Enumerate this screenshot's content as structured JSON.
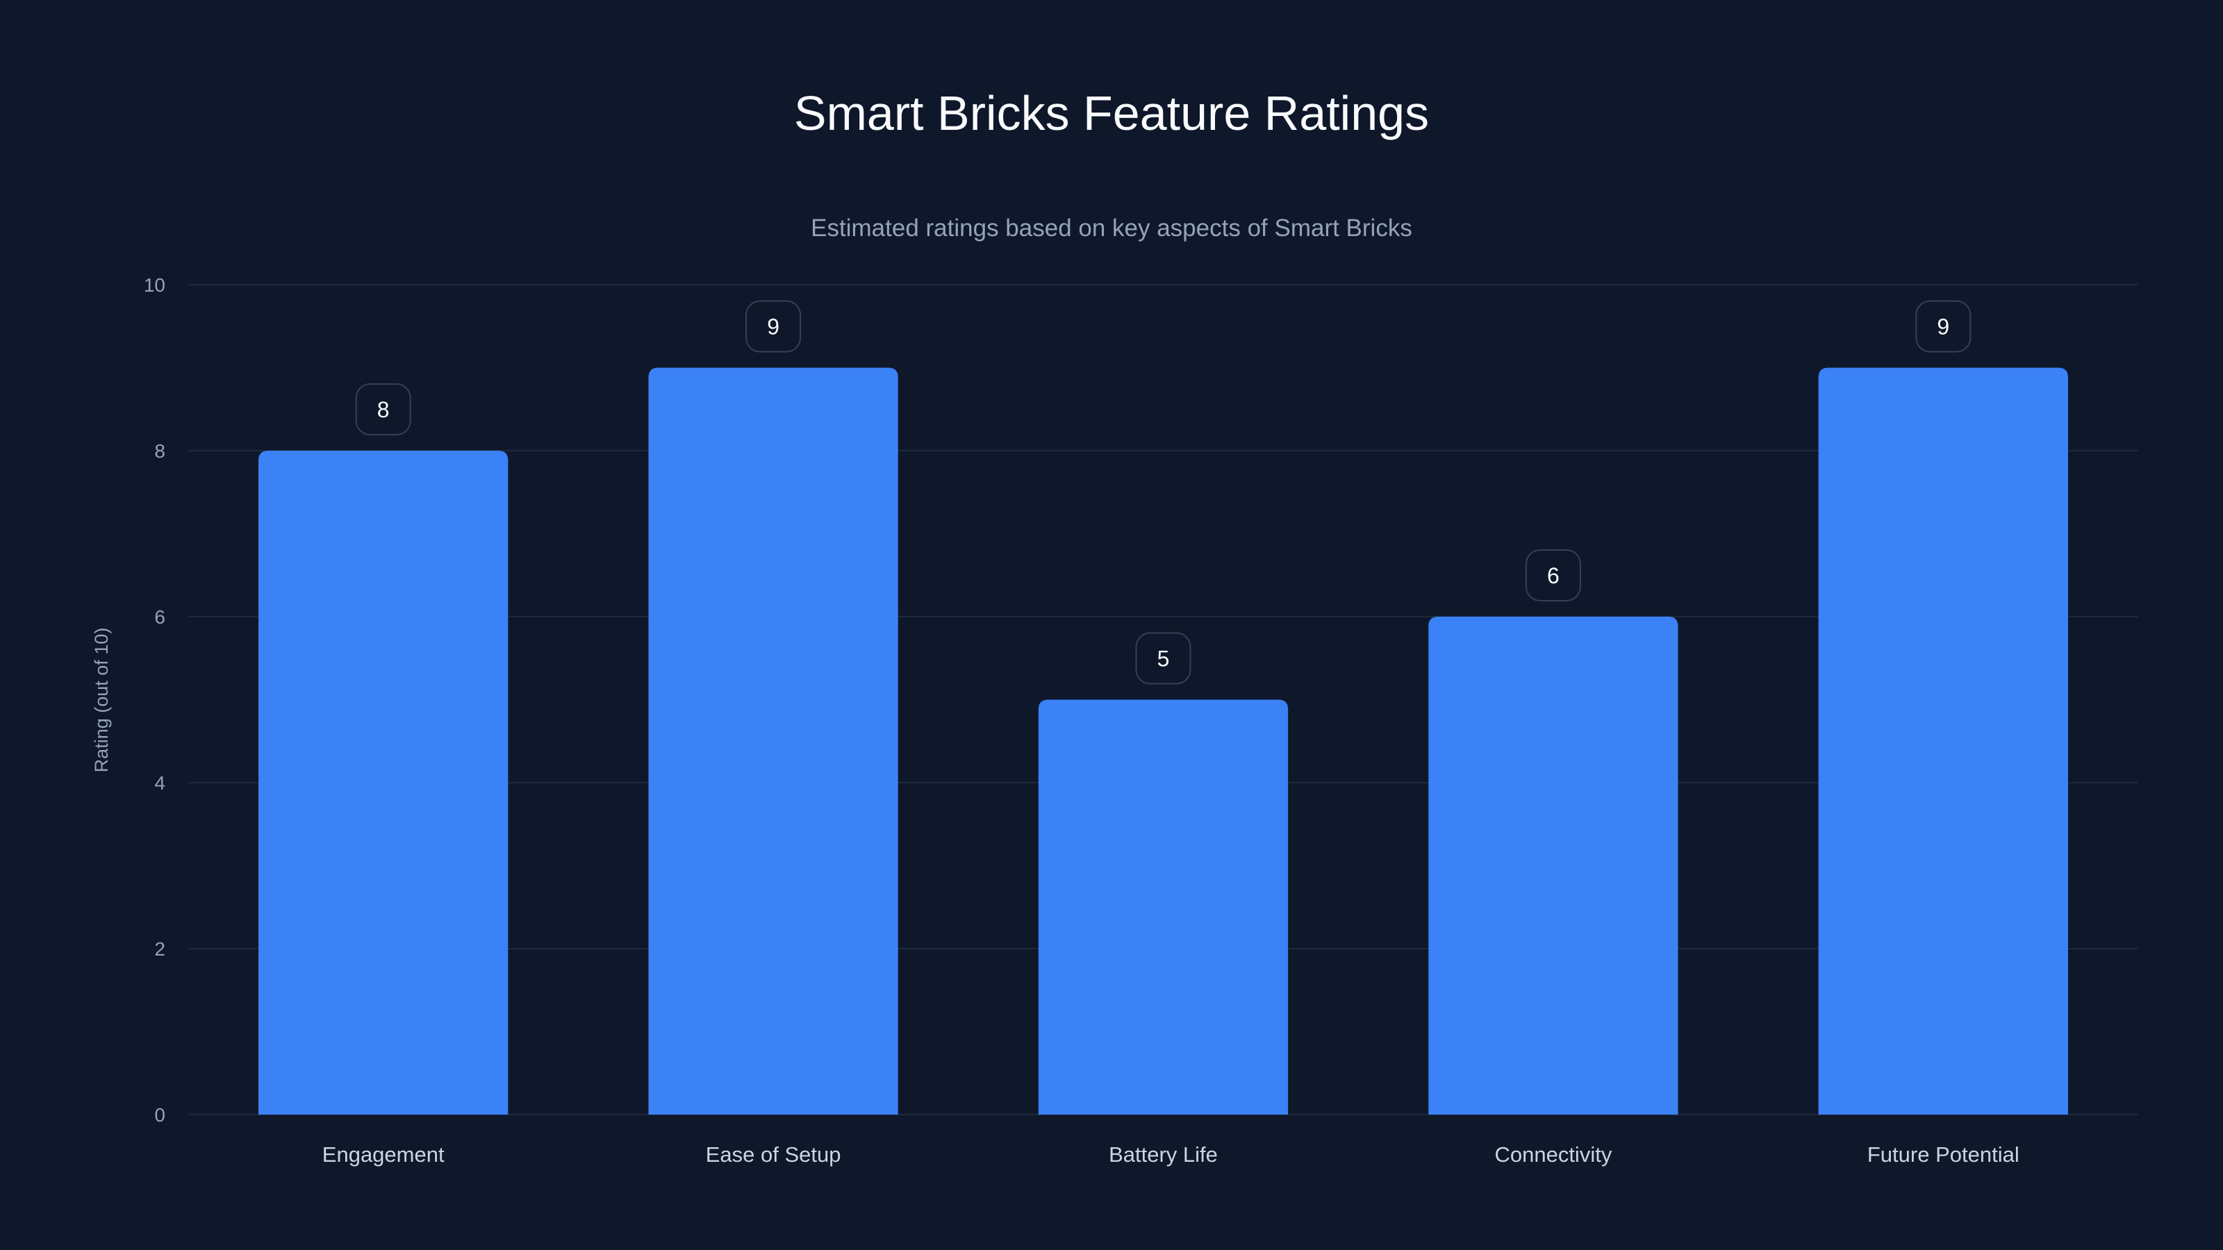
{
  "chart_data": {
    "type": "bar",
    "title": "Smart Bricks Feature Ratings",
    "subtitle": "Estimated ratings based on key aspects of Smart Bricks",
    "categories": [
      "Engagement",
      "Ease of Setup",
      "Battery Life",
      "Connectivity",
      "Future Potential"
    ],
    "values": [
      8,
      9,
      5,
      6,
      9
    ],
    "xlabel": "",
    "ylabel": "Rating (out of 10)",
    "ylim": [
      0,
      10
    ],
    "yticks": [
      0,
      2,
      4,
      6,
      8,
      10
    ],
    "grid": true,
    "data_labels": true,
    "colors": {
      "background": "#0f172a",
      "bar": "#3b82f6",
      "grid": "#1e293b",
      "label_border": "#334155"
    }
  }
}
